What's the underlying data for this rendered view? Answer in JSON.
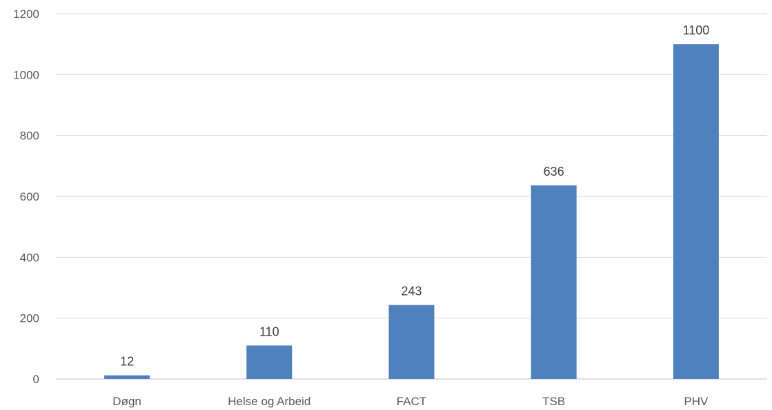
{
  "chart_data": {
    "type": "bar",
    "title": "",
    "xlabel": "",
    "ylabel": "",
    "categories": [
      "Døgn",
      "Helse og Arbeid",
      "FACT",
      "TSB",
      "PHV"
    ],
    "values": [
      12,
      110,
      243,
      636,
      1100
    ],
    "data_labels": [
      "12",
      "110",
      "243",
      "636",
      "1100"
    ],
    "ylim": [
      0,
      1200
    ],
    "yticks": [
      0,
      200,
      400,
      600,
      800,
      1000,
      1200
    ],
    "ytick_labels": [
      "0",
      "200",
      "400",
      "600",
      "800",
      "1000",
      "1200"
    ],
    "grid": true,
    "legend": "none",
    "bar_color": "#4f81bd"
  }
}
